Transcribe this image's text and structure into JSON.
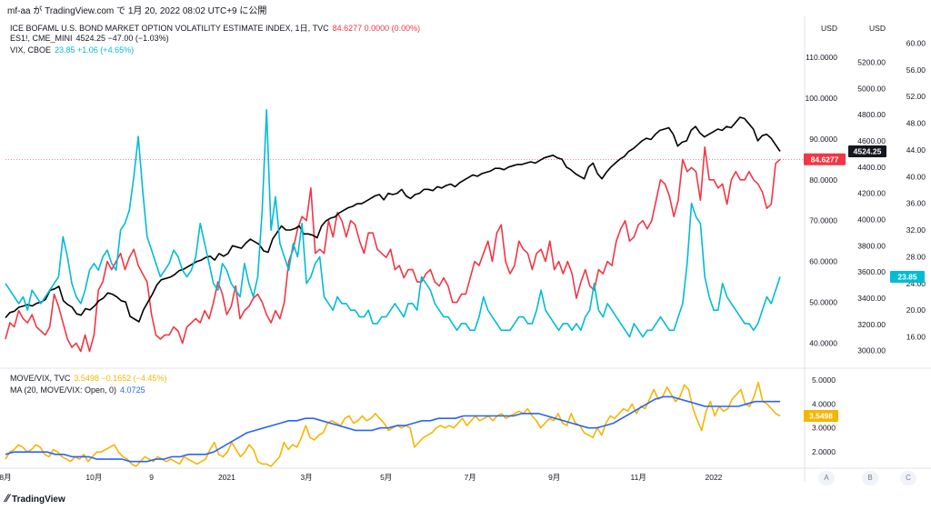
{
  "header": "mf-aa が TradingView.com で 1月 20, 2022 08:02 UTC+9 に公開",
  "footer": {
    "brand": "TradingView",
    "logo_icon": "tradingview-logo-icon"
  },
  "buttons": {
    "a": "A",
    "b": "B",
    "c": "C"
  },
  "legend_top": [
    {
      "name": "ICE BOFAML U.S. BOND MARKET OPTION VOLATILITY ESTIMATE INDEX, 1日, TVC",
      "value": "84.6277  0.0000 (0.00%)",
      "color": "#f23645"
    },
    {
      "name": "ES1!, CME_MINI",
      "value": "4524.25  −47.00 (−1.03%)",
      "color": "#131722"
    },
    {
      "name": "VIX, CBOE",
      "value": "23.85  +1.06 (+4.65%)",
      "color": "#00bcd4"
    }
  ],
  "legend_bottom": [
    {
      "name": "MOVE/VIX, TVC",
      "value": "3.5498  −0.1652 (−4.45%)",
      "color": "#f7b500"
    },
    {
      "name": "MA (20, MOVE/VIX: Open, 0)",
      "value": "4.0725",
      "color": "#2962ff"
    }
  ],
  "chart_data": [
    {
      "type": "line",
      "x_tick_labels": [
        "8月",
        "10月",
        "9",
        "2021",
        "3月",
        "5月",
        "7月",
        "9月",
        "11月",
        "2022"
      ],
      "axes": [
        {
          "id": "move",
          "unit": "USD",
          "ylim": [
            35,
            120
          ],
          "ticks": [
            "40.0000",
            "50.0000",
            "60.0000",
            "70.0000",
            "80.0000",
            "90.0000",
            "100.0000",
            "110.0000"
          ],
          "last_label": "84.6277",
          "last_color": "#f23645"
        },
        {
          "id": "es",
          "unit": "USD",
          "ylim": [
            2900,
            5550
          ],
          "ticks": [
            "3000.00",
            "3200.00",
            "3400.00",
            "3600.00",
            "3800.00",
            "4000.00",
            "4200.00",
            "4400.00",
            "4600.00",
            "4800.00",
            "5000.00",
            "5200.00"
          ],
          "last_label": "4524.25",
          "last_color": "#131722"
        },
        {
          "id": "vix",
          "ylim": [
            12,
            64
          ],
          "ticks": [
            "16.00",
            "20.00",
            "24.00",
            "28.00",
            "32.00",
            "36.00",
            "40.00",
            "44.00",
            "48.00",
            "52.00",
            "56.00",
            "60.00",
            "64.00"
          ],
          "last_label": "23.85",
          "last_color": "#00bcd4"
        }
      ],
      "series": [
        {
          "name": "ICE BOFAML U.S. BOND MARKET OPTION VOLATILITY ESTIMATE INDEX",
          "axis": "move",
          "color": "#f23645",
          "values": [
            41,
            45,
            44,
            48,
            46,
            45,
            47,
            44,
            43,
            42,
            44,
            52,
            49,
            45,
            41,
            39,
            40,
            38,
            42,
            38,
            42,
            53,
            55,
            60,
            58,
            60,
            62,
            58,
            61,
            63,
            59,
            57,
            55,
            47,
            42,
            41,
            42,
            42,
            44,
            43,
            40,
            44,
            45,
            46,
            45,
            48,
            46,
            50,
            55,
            52,
            47,
            49,
            54,
            46,
            48,
            49,
            51,
            52,
            50,
            47,
            45,
            48,
            46,
            50,
            60,
            63,
            68,
            71,
            70,
            78,
            62,
            63,
            62,
            70,
            66,
            72,
            70,
            66,
            70,
            69,
            65,
            62,
            67,
            67,
            63,
            62,
            61,
            63,
            58,
            59,
            56,
            58,
            58,
            55,
            55,
            57,
            58,
            55,
            54,
            56,
            54,
            50,
            50,
            52,
            52,
            56,
            60,
            59,
            62,
            65,
            60,
            67,
            69,
            60,
            57,
            59,
            65,
            63,
            62,
            58,
            62,
            63,
            60,
            65,
            58,
            60,
            57,
            60,
            57,
            51,
            55,
            58,
            54,
            53,
            58,
            57,
            60,
            59,
            65,
            68,
            70,
            65,
            66,
            69,
            70,
            68,
            70,
            75,
            80,
            79,
            76,
            71,
            75,
            85,
            82,
            83,
            82,
            75,
            88,
            80,
            80,
            78,
            79,
            74,
            80,
            82,
            80,
            80,
            82,
            80,
            79,
            77,
            73,
            74,
            84,
            85
          ]
        },
        {
          "name": "ES1!, CME_MINI",
          "axis": "es",
          "color": "#000000",
          "values": [
            3250,
            3290,
            3300,
            3330,
            3340,
            3350,
            3340,
            3360,
            3370,
            3390,
            3460,
            3470,
            3490,
            3380,
            3350,
            3330,
            3280,
            3270,
            3320,
            3310,
            3340,
            3380,
            3400,
            3440,
            3430,
            3410,
            3380,
            3370,
            3260,
            3240,
            3220,
            3310,
            3370,
            3430,
            3500,
            3540,
            3550,
            3560,
            3580,
            3610,
            3620,
            3640,
            3660,
            3680,
            3690,
            3710,
            3720,
            3690,
            3740,
            3720,
            3740,
            3800,
            3790,
            3780,
            3820,
            3850,
            3830,
            3810,
            3760,
            3750,
            3850,
            3900,
            3950,
            3920,
            3920,
            3930,
            3950,
            3890,
            3890,
            3880,
            3860,
            3950,
            3990,
            4010,
            4020,
            4050,
            4070,
            4090,
            4100,
            4120,
            4120,
            4140,
            4160,
            4180,
            4190,
            4150,
            4200,
            4190,
            4200,
            4230,
            4180,
            4160,
            4190,
            4200,
            4230,
            4230,
            4220,
            4250,
            4240,
            4260,
            4270,
            4250,
            4280,
            4300,
            4320,
            4340,
            4330,
            4350,
            4360,
            4370,
            4390,
            4390,
            4380,
            4400,
            4410,
            4420,
            4420,
            4430,
            4440,
            4430,
            4450,
            4470,
            4480,
            4490,
            4470,
            4460,
            4400,
            4380,
            4350,
            4330,
            4310,
            4400,
            4430,
            4350,
            4310,
            4360,
            4400,
            4430,
            4460,
            4480,
            4520,
            4540,
            4570,
            4600,
            4620,
            4610,
            4650,
            4680,
            4690,
            4700,
            4650,
            4560,
            4590,
            4600,
            4680,
            4710,
            4660,
            4630,
            4650,
            4670,
            4690,
            4680,
            4710,
            4700,
            4740,
            4780,
            4770,
            4730,
            4690,
            4600,
            4640,
            4650,
            4620,
            4570,
            4520
          ]
        },
        {
          "name": "VIX, CBOE",
          "axis": "vix",
          "color": "#00bcd4",
          "values": [
            24,
            23,
            22,
            21,
            22,
            20,
            23,
            22,
            21,
            22,
            23,
            24,
            25,
            31,
            28,
            24,
            22,
            21,
            23,
            26,
            27,
            26,
            28,
            29,
            27,
            26,
            32,
            33,
            35,
            40,
            46,
            38,
            31,
            29,
            27,
            25,
            26,
            27,
            29,
            28,
            26,
            25,
            26,
            28,
            33,
            30,
            27,
            24,
            23,
            27,
            26,
            24,
            23,
            22,
            27,
            24,
            22,
            25,
            35,
            50,
            32,
            37,
            30,
            28,
            26,
            30,
            28,
            33,
            24,
            25,
            27,
            28,
            22,
            21,
            20,
            22,
            21,
            21,
            20,
            20,
            19,
            19,
            20,
            18,
            18,
            19,
            19,
            20,
            21,
            20,
            19,
            21,
            21,
            20,
            25,
            24,
            23,
            21,
            20,
            19,
            19,
            18,
            17,
            18,
            18,
            17,
            17,
            19,
            22,
            20,
            19,
            18,
            17,
            17,
            17,
            18,
            19,
            19,
            18,
            18,
            20,
            23,
            20,
            19,
            18,
            17,
            18,
            18,
            17,
            18,
            17,
            19,
            20,
            24,
            20,
            19,
            21,
            20,
            19,
            18,
            17,
            16,
            18,
            17,
            16,
            17,
            17,
            18,
            19,
            18,
            17,
            17,
            19,
            21,
            27,
            36,
            34,
            33,
            25,
            22,
            20,
            20,
            24,
            22,
            21,
            20,
            19,
            18,
            18,
            17,
            18,
            20,
            22,
            21,
            23,
            25
          ]
        },
        {
          "name": "MOVE/VIX, TVC",
          "axis": "ratio",
          "color": "#f7b500",
          "values": [
            1.7,
            2.0,
            2.1,
            2.3,
            2.2,
            2.0,
            2.1,
            2.3,
            2.2,
            1.9,
            1.8,
            2.1,
            2.0,
            1.8,
            1.7,
            1.6,
            1.8,
            1.7,
            1.9,
            1.6,
            1.8,
            2.0,
            2.0,
            2.1,
            2.2,
            2.3,
            2.0,
            1.8,
            1.7,
            1.5,
            1.4,
            1.6,
            1.8,
            1.7,
            1.6,
            1.8,
            1.7,
            1.6,
            1.7,
            1.6,
            1.5,
            1.8,
            1.7,
            1.6,
            1.5,
            1.6,
            1.7,
            2.1,
            2.4,
            1.9,
            1.8,
            2.0,
            2.4,
            2.1,
            1.8,
            2.0,
            2.3,
            2.1,
            1.6,
            1.5,
            1.5,
            1.4,
            1.6,
            1.8,
            2.4,
            2.1,
            2.3,
            2.2,
            2.6,
            3.1,
            2.6,
            2.5,
            2.7,
            2.8,
            3.2,
            3.3,
            3.2,
            3.1,
            3.4,
            3.5,
            3.2,
            3.3,
            3.5,
            3.3,
            3.4,
            3.6,
            3.4,
            3.2,
            2.9,
            3.0,
            3.1,
            3.0,
            3.1,
            3.0,
            2.2,
            2.4,
            2.6,
            2.7,
            2.8,
            3.0,
            3.1,
            3.0,
            3.1,
            3.0,
            3.2,
            3.4,
            3.1,
            3.3,
            3.5,
            3.3,
            3.4,
            3.5,
            3.3,
            3.5,
            3.6,
            3.4,
            3.5,
            3.6,
            3.7,
            3.6,
            3.8,
            3.5,
            3.3,
            3.0,
            3.2,
            3.4,
            3.3,
            3.6,
            3.2,
            3.1,
            3.6,
            3.2,
            3.1,
            2.8,
            2.7,
            2.6,
            3.0,
            2.7,
            3.2,
            3.5,
            3.4,
            3.6,
            3.8,
            3.7,
            4.0,
            3.6,
            3.9,
            3.8,
            4.2,
            4.6,
            4.2,
            4.3,
            4.7,
            4.4,
            4.1,
            4.3,
            4.8,
            4.6,
            3.8,
            3.3,
            2.9,
            3.7,
            4.1,
            3.5,
            3.9,
            3.7,
            3.8,
            4.2,
            4.4,
            4.6,
            4.0,
            3.9,
            4.3,
            4.9,
            4.1,
            4.0,
            3.8,
            3.6,
            3.5
          ]
        },
        {
          "name": "MA (20, MOVE/VIX: Open, 0)",
          "axis": "ratio",
          "color": "#2962ff",
          "values": [
            1.9,
            2.0,
            2.0,
            2.0,
            2.0,
            2.0,
            1.9,
            1.9,
            1.8,
            1.8,
            1.8,
            1.7,
            1.7,
            1.7,
            1.7,
            1.6,
            1.6,
            1.6,
            1.7,
            1.7,
            1.8,
            1.8,
            1.9,
            1.9,
            1.9,
            2.0,
            2.2,
            2.4,
            2.6,
            2.8,
            2.9,
            3.0,
            3.1,
            3.2,
            3.3,
            3.3,
            3.4,
            3.4,
            3.3,
            3.2,
            3.1,
            3.0,
            2.9,
            2.9,
            2.9,
            3.0,
            3.0,
            3.1,
            3.1,
            3.2,
            3.3,
            3.3,
            3.4,
            3.4,
            3.4,
            3.5,
            3.5,
            3.5,
            3.5,
            3.5,
            3.5,
            3.5,
            3.6,
            3.6,
            3.6,
            3.5,
            3.4,
            3.3,
            3.2,
            3.1,
            3.0,
            3.0,
            3.1,
            3.2,
            3.4,
            3.6,
            3.8,
            4.0,
            4.2,
            4.3,
            4.3,
            4.2,
            4.1,
            4.0,
            3.9,
            3.9,
            3.9,
            3.9,
            3.9,
            4.0,
            4.1,
            4.1,
            4.1,
            4.1
          ]
        }
      ],
      "ratio_axis": {
        "ylim": [
          1.4,
          5.3
        ],
        "ticks": [
          "2.0000",
          "3.0000",
          "4.0000",
          "5.0000"
        ],
        "last_label": "3.5498",
        "last_color": "#f7b500"
      }
    }
  ]
}
